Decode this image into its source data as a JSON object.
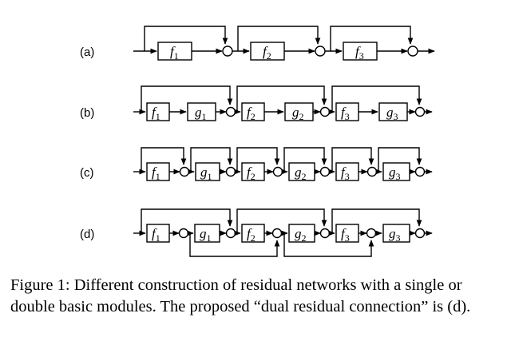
{
  "rows": [
    {
      "label": "(a)",
      "modules": [
        {
          "name": "f",
          "sub": "1"
        },
        {
          "name": "f",
          "sub": "2"
        },
        {
          "name": "f",
          "sub": "3"
        }
      ]
    },
    {
      "label": "(b)",
      "modules": [
        {
          "name": "f",
          "sub": "1"
        },
        {
          "name": "g",
          "sub": "1"
        },
        {
          "name": "f",
          "sub": "2"
        },
        {
          "name": "g",
          "sub": "2"
        },
        {
          "name": "f",
          "sub": "3"
        },
        {
          "name": "g",
          "sub": "3"
        }
      ]
    },
    {
      "label": "(c)",
      "modules": [
        {
          "name": "f",
          "sub": "1"
        },
        {
          "name": "g",
          "sub": "1"
        },
        {
          "name": "f",
          "sub": "2"
        },
        {
          "name": "g",
          "sub": "2"
        },
        {
          "name": "f",
          "sub": "3"
        },
        {
          "name": "g",
          "sub": "3"
        }
      ]
    },
    {
      "label": "(d)",
      "modules": [
        {
          "name": "f",
          "sub": "1"
        },
        {
          "name": "g",
          "sub": "1"
        },
        {
          "name": "f",
          "sub": "2"
        },
        {
          "name": "g",
          "sub": "2"
        },
        {
          "name": "f",
          "sub": "3"
        },
        {
          "name": "g",
          "sub": "3"
        }
      ]
    }
  ],
  "caption": "Figure 1: Different construction of residual networks with a single or double basic modules. The proposed “dual residual connection” is (d)."
}
